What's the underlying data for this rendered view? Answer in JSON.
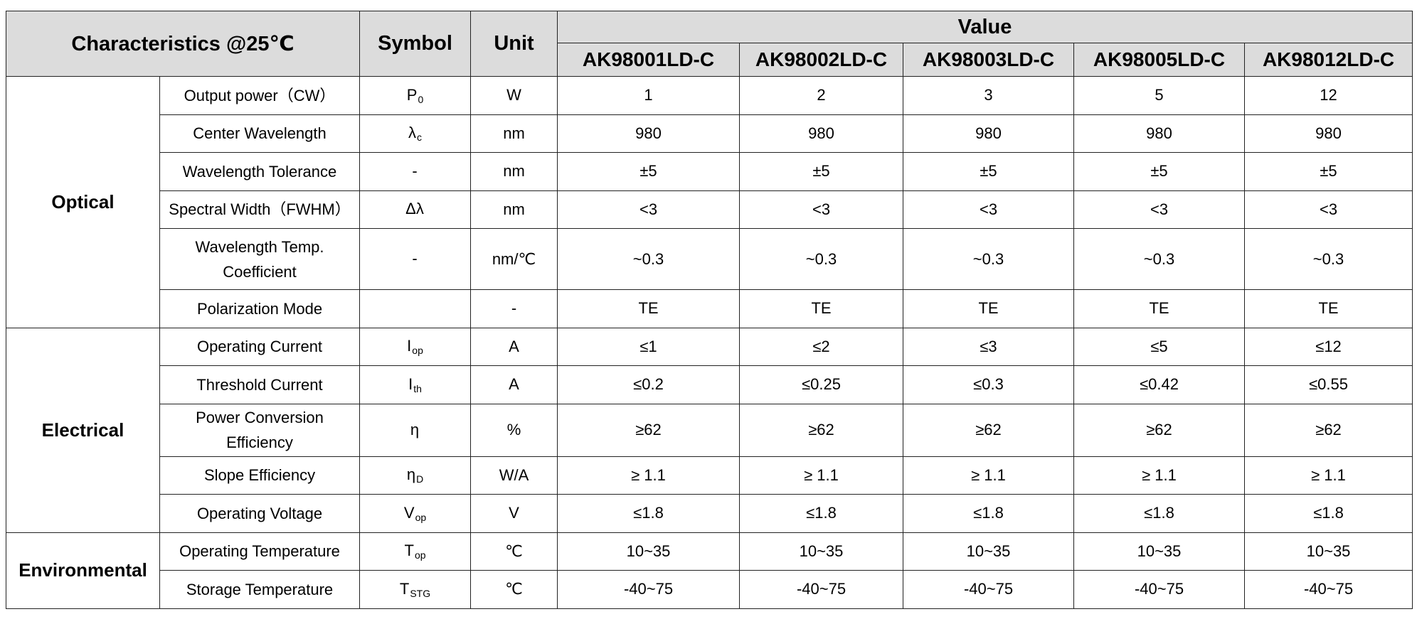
{
  "header": {
    "characteristics": "Characteristics @25℃",
    "symbol": "Symbol",
    "unit": "Unit",
    "value": "Value",
    "models": [
      "AK98001LD-C",
      "AK98002LD-C",
      "AK98003LD-C",
      "AK98005LD-C",
      "AK98012LD-C"
    ]
  },
  "groups": [
    {
      "category": "Optical",
      "rows": [
        {
          "param": "Output power（CW）",
          "sym": "P",
          "sub": "0",
          "unit": "W",
          "values": [
            "1",
            "2",
            "3",
            "5",
            "12"
          ]
        },
        {
          "param": "Center Wavelength",
          "sym": "λ",
          "sub": "c",
          "unit": "nm",
          "values": [
            "980",
            "980",
            "980",
            "980",
            "980"
          ]
        },
        {
          "param": "Wavelength Tolerance",
          "sym": "-",
          "sub": "",
          "unit": "nm",
          "values": [
            "±5",
            "±5",
            "±5",
            "±5",
            "±5"
          ]
        },
        {
          "param": "Spectral Width（FWHM）",
          "sym": "Δλ",
          "sub": "",
          "unit": "nm",
          "values": [
            "<3",
            "<3",
            "<3",
            "<3",
            "<3"
          ]
        },
        {
          "param": "Wavelength Temp. Coefficient",
          "sym": "-",
          "sub": "",
          "unit": "nm/℃",
          "values": [
            "~0.3",
            "~0.3",
            "~0.3",
            "~0.3",
            "~0.3"
          ]
        },
        {
          "param": "Polarization Mode",
          "sym": "",
          "sub": "",
          "unit": "-",
          "values": [
            "TE",
            "TE",
            "TE",
            "TE",
            "TE"
          ]
        }
      ]
    },
    {
      "category": "Electrical",
      "rows": [
        {
          "param": "Operating Current",
          "sym": "I",
          "sub": "op",
          "unit": "A",
          "values": [
            "≤1",
            "≤2",
            "≤3",
            "≤5",
            "≤12"
          ]
        },
        {
          "param": "Threshold Current",
          "sym": "I",
          "sub": "th",
          "unit": "A",
          "values": [
            "≤0.2",
            "≤0.25",
            "≤0.3",
            "≤0.42",
            "≤0.55"
          ]
        },
        {
          "param": "Power Conversion Efficiency",
          "sym": "η",
          "sub": "",
          "unit": "%",
          "values": [
            "≥62",
            "≥62",
            "≥62",
            "≥62",
            "≥62"
          ]
        },
        {
          "param": "Slope Efficiency",
          "sym": "η",
          "sub": "D",
          "unit": "W/A",
          "values": [
            "≥ 1.1",
            "≥ 1.1",
            "≥ 1.1",
            "≥ 1.1",
            "≥ 1.1"
          ]
        },
        {
          "param": "Operating Voltage",
          "sym": "V",
          "sub": "op",
          "unit": "V",
          "values": [
            "≤1.8",
            "≤1.8",
            "≤1.8",
            "≤1.8",
            "≤1.8"
          ]
        }
      ]
    },
    {
      "category": "Environmental",
      "rows": [
        {
          "param": "Operating Temperature",
          "sym": "T",
          "sub": "op",
          "unit": "℃",
          "values": [
            "10~35",
            "10~35",
            "10~35",
            "10~35",
            "10~35"
          ]
        },
        {
          "param": "Storage Temperature",
          "sym": "T",
          "sub": "STG",
          "unit": "℃",
          "values": [
            "-40~75",
            "-40~75",
            "-40~75",
            "-40~75",
            "-40~75"
          ]
        }
      ]
    }
  ]
}
